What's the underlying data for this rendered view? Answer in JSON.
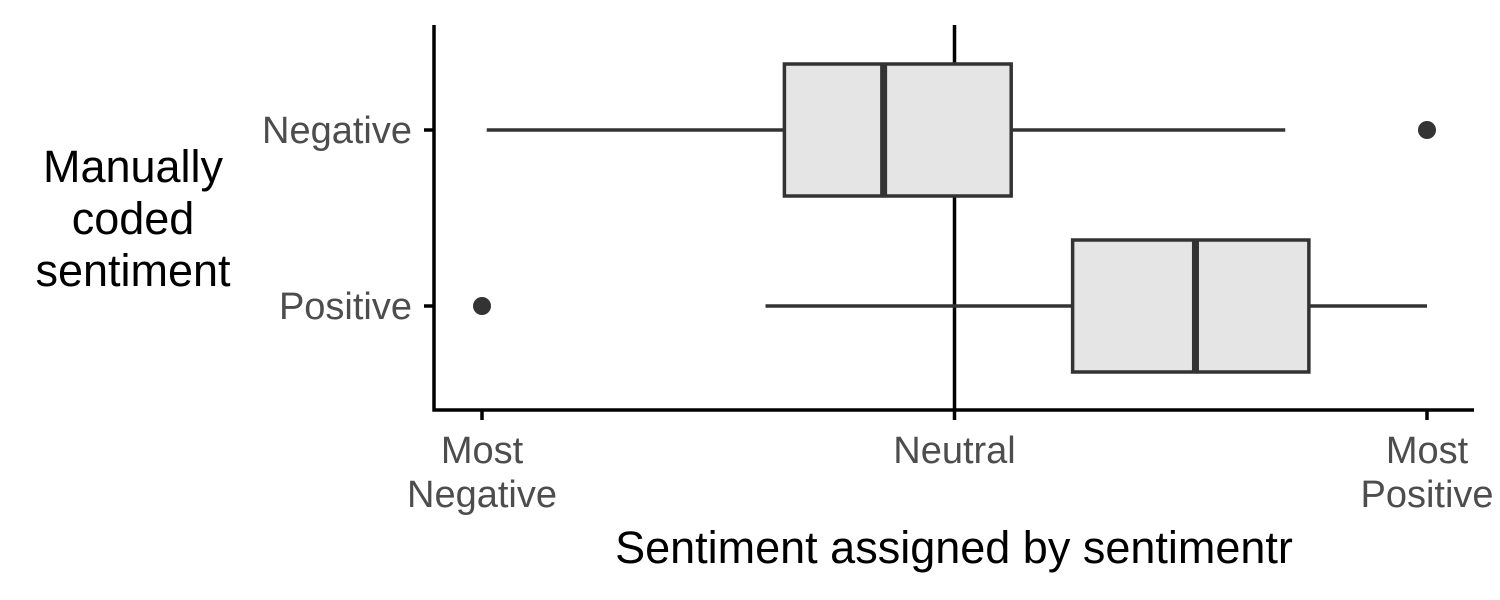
{
  "chart_data": {
    "type": "boxplot",
    "orientation": "horizontal",
    "title": "",
    "xlabel": "Sentiment assigned by sentimentr",
    "ylabel": "Manually coded sentiment",
    "ylabel_lines": [
      "Manually",
      "coded",
      "sentiment"
    ],
    "xlim": [
      -1.1,
      1.1
    ],
    "x_ticks": [
      {
        "value": -1,
        "lines": [
          "Most",
          "Negative"
        ]
      },
      {
        "value": 0,
        "lines": [
          "Neutral"
        ]
      },
      {
        "value": 1,
        "lines": [
          "Most",
          "Positive"
        ]
      }
    ],
    "categories": [
      "Negative",
      "Positive"
    ],
    "reference_line": {
      "x": 0
    },
    "boxes": [
      {
        "category": "Negative",
        "whisker_low": -0.99,
        "q1": -0.36,
        "median": -0.15,
        "q3": 0.12,
        "whisker_high": 0.7,
        "outliers": [
          1.0
        ]
      },
      {
        "category": "Positive",
        "whisker_low": -0.4,
        "q1": 0.25,
        "median": 0.51,
        "q3": 0.75,
        "whisker_high": 1.0,
        "outliers": [
          -1.0
        ]
      }
    ],
    "grid": false,
    "legend": "none",
    "colors": {
      "box_fill": "#e5e5e5",
      "box_stroke": "#333333",
      "axis": "#000000",
      "tick_text": "#4d4d4d"
    }
  }
}
